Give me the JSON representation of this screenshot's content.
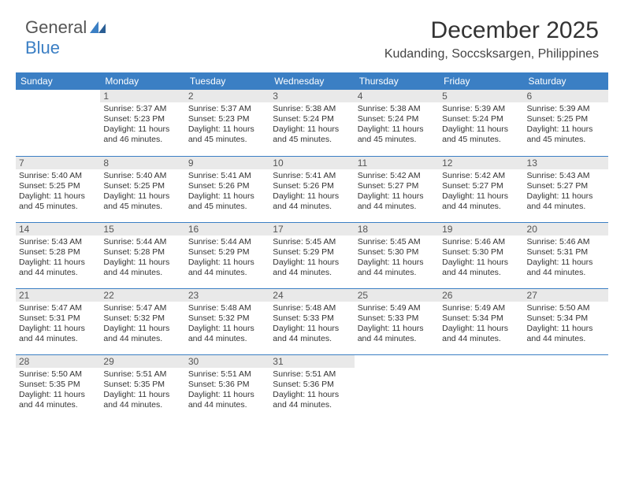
{
  "logo": {
    "general": "General",
    "blue": "Blue"
  },
  "header": {
    "month_title": "December 2025",
    "location": "Kudanding, Soccsksargen, Philippines"
  },
  "colors": {
    "header_bg": "#3b7fc4",
    "header_text": "#ffffff",
    "daynum_bg": "#e9e9e9",
    "cell_border": "#3b7fc4",
    "body_text": "#333333"
  },
  "weekdays": [
    "Sunday",
    "Monday",
    "Tuesday",
    "Wednesday",
    "Thursday",
    "Friday",
    "Saturday"
  ],
  "weeks": [
    [
      null,
      {
        "n": "1",
        "sunrise": "Sunrise: 5:37 AM",
        "sunset": "Sunset: 5:23 PM",
        "d1": "Daylight: 11 hours",
        "d2": "and 46 minutes."
      },
      {
        "n": "2",
        "sunrise": "Sunrise: 5:37 AM",
        "sunset": "Sunset: 5:23 PM",
        "d1": "Daylight: 11 hours",
        "d2": "and 45 minutes."
      },
      {
        "n": "3",
        "sunrise": "Sunrise: 5:38 AM",
        "sunset": "Sunset: 5:24 PM",
        "d1": "Daylight: 11 hours",
        "d2": "and 45 minutes."
      },
      {
        "n": "4",
        "sunrise": "Sunrise: 5:38 AM",
        "sunset": "Sunset: 5:24 PM",
        "d1": "Daylight: 11 hours",
        "d2": "and 45 minutes."
      },
      {
        "n": "5",
        "sunrise": "Sunrise: 5:39 AM",
        "sunset": "Sunset: 5:24 PM",
        "d1": "Daylight: 11 hours",
        "d2": "and 45 minutes."
      },
      {
        "n": "6",
        "sunrise": "Sunrise: 5:39 AM",
        "sunset": "Sunset: 5:25 PM",
        "d1": "Daylight: 11 hours",
        "d2": "and 45 minutes."
      }
    ],
    [
      {
        "n": "7",
        "sunrise": "Sunrise: 5:40 AM",
        "sunset": "Sunset: 5:25 PM",
        "d1": "Daylight: 11 hours",
        "d2": "and 45 minutes."
      },
      {
        "n": "8",
        "sunrise": "Sunrise: 5:40 AM",
        "sunset": "Sunset: 5:25 PM",
        "d1": "Daylight: 11 hours",
        "d2": "and 45 minutes."
      },
      {
        "n": "9",
        "sunrise": "Sunrise: 5:41 AM",
        "sunset": "Sunset: 5:26 PM",
        "d1": "Daylight: 11 hours",
        "d2": "and 45 minutes."
      },
      {
        "n": "10",
        "sunrise": "Sunrise: 5:41 AM",
        "sunset": "Sunset: 5:26 PM",
        "d1": "Daylight: 11 hours",
        "d2": "and 44 minutes."
      },
      {
        "n": "11",
        "sunrise": "Sunrise: 5:42 AM",
        "sunset": "Sunset: 5:27 PM",
        "d1": "Daylight: 11 hours",
        "d2": "and 44 minutes."
      },
      {
        "n": "12",
        "sunrise": "Sunrise: 5:42 AM",
        "sunset": "Sunset: 5:27 PM",
        "d1": "Daylight: 11 hours",
        "d2": "and 44 minutes."
      },
      {
        "n": "13",
        "sunrise": "Sunrise: 5:43 AM",
        "sunset": "Sunset: 5:27 PM",
        "d1": "Daylight: 11 hours",
        "d2": "and 44 minutes."
      }
    ],
    [
      {
        "n": "14",
        "sunrise": "Sunrise: 5:43 AM",
        "sunset": "Sunset: 5:28 PM",
        "d1": "Daylight: 11 hours",
        "d2": "and 44 minutes."
      },
      {
        "n": "15",
        "sunrise": "Sunrise: 5:44 AM",
        "sunset": "Sunset: 5:28 PM",
        "d1": "Daylight: 11 hours",
        "d2": "and 44 minutes."
      },
      {
        "n": "16",
        "sunrise": "Sunrise: 5:44 AM",
        "sunset": "Sunset: 5:29 PM",
        "d1": "Daylight: 11 hours",
        "d2": "and 44 minutes."
      },
      {
        "n": "17",
        "sunrise": "Sunrise: 5:45 AM",
        "sunset": "Sunset: 5:29 PM",
        "d1": "Daylight: 11 hours",
        "d2": "and 44 minutes."
      },
      {
        "n": "18",
        "sunrise": "Sunrise: 5:45 AM",
        "sunset": "Sunset: 5:30 PM",
        "d1": "Daylight: 11 hours",
        "d2": "and 44 minutes."
      },
      {
        "n": "19",
        "sunrise": "Sunrise: 5:46 AM",
        "sunset": "Sunset: 5:30 PM",
        "d1": "Daylight: 11 hours",
        "d2": "and 44 minutes."
      },
      {
        "n": "20",
        "sunrise": "Sunrise: 5:46 AM",
        "sunset": "Sunset: 5:31 PM",
        "d1": "Daylight: 11 hours",
        "d2": "and 44 minutes."
      }
    ],
    [
      {
        "n": "21",
        "sunrise": "Sunrise: 5:47 AM",
        "sunset": "Sunset: 5:31 PM",
        "d1": "Daylight: 11 hours",
        "d2": "and 44 minutes."
      },
      {
        "n": "22",
        "sunrise": "Sunrise: 5:47 AM",
        "sunset": "Sunset: 5:32 PM",
        "d1": "Daylight: 11 hours",
        "d2": "and 44 minutes."
      },
      {
        "n": "23",
        "sunrise": "Sunrise: 5:48 AM",
        "sunset": "Sunset: 5:32 PM",
        "d1": "Daylight: 11 hours",
        "d2": "and 44 minutes."
      },
      {
        "n": "24",
        "sunrise": "Sunrise: 5:48 AM",
        "sunset": "Sunset: 5:33 PM",
        "d1": "Daylight: 11 hours",
        "d2": "and 44 minutes."
      },
      {
        "n": "25",
        "sunrise": "Sunrise: 5:49 AM",
        "sunset": "Sunset: 5:33 PM",
        "d1": "Daylight: 11 hours",
        "d2": "and 44 minutes."
      },
      {
        "n": "26",
        "sunrise": "Sunrise: 5:49 AM",
        "sunset": "Sunset: 5:34 PM",
        "d1": "Daylight: 11 hours",
        "d2": "and 44 minutes."
      },
      {
        "n": "27",
        "sunrise": "Sunrise: 5:50 AM",
        "sunset": "Sunset: 5:34 PM",
        "d1": "Daylight: 11 hours",
        "d2": "and 44 minutes."
      }
    ],
    [
      {
        "n": "28",
        "sunrise": "Sunrise: 5:50 AM",
        "sunset": "Sunset: 5:35 PM",
        "d1": "Daylight: 11 hours",
        "d2": "and 44 minutes."
      },
      {
        "n": "29",
        "sunrise": "Sunrise: 5:51 AM",
        "sunset": "Sunset: 5:35 PM",
        "d1": "Daylight: 11 hours",
        "d2": "and 44 minutes."
      },
      {
        "n": "30",
        "sunrise": "Sunrise: 5:51 AM",
        "sunset": "Sunset: 5:36 PM",
        "d1": "Daylight: 11 hours",
        "d2": "and 44 minutes."
      },
      {
        "n": "31",
        "sunrise": "Sunrise: 5:51 AM",
        "sunset": "Sunset: 5:36 PM",
        "d1": "Daylight: 11 hours",
        "d2": "and 44 minutes."
      },
      null,
      null,
      null
    ]
  ]
}
